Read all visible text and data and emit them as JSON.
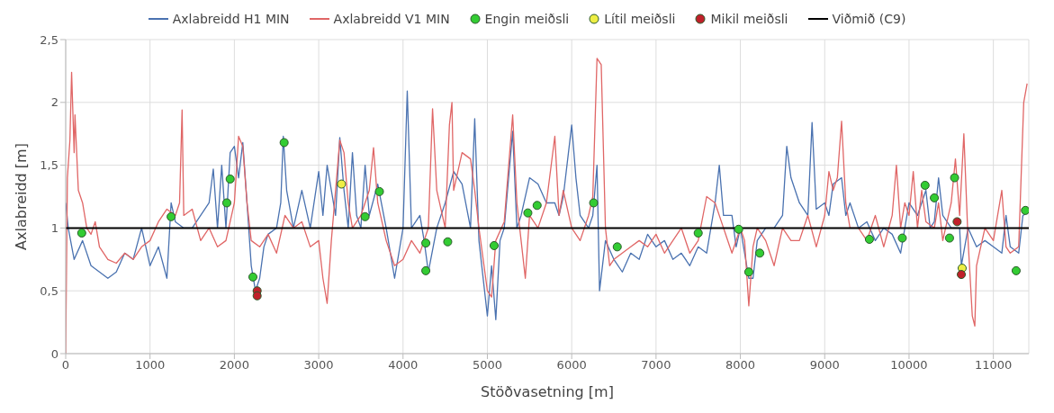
{
  "chart_data": {
    "type": "line",
    "xlabel": "Stöðvasetning [m]",
    "ylabel": "Axlabreidd [m]",
    "xlim": [
      0,
      11420
    ],
    "xticks": [
      0,
      1000,
      2000,
      3000,
      4000,
      5000,
      6000,
      7000,
      8000,
      9000,
      10000,
      11000
    ],
    "ylim": [
      0,
      2.5
    ],
    "yticks": [
      0,
      {
        "value": 0.5,
        "label": "0,5"
      },
      1,
      {
        "value": 1.5,
        "label": "1,5"
      },
      2,
      {
        "value": 2.5,
        "label": "2,5"
      }
    ],
    "grid": true,
    "legend": "top",
    "series": [
      {
        "name": "Axlabreidd H1 MIN",
        "color": "#4a72b0",
        "x": [
          0,
          30,
          100,
          200,
          300,
          400,
          500,
          600,
          700,
          800,
          900,
          1000,
          1100,
          1200,
          1250,
          1300,
          1400,
          1500,
          1600,
          1700,
          1750,
          1800,
          1850,
          1900,
          1950,
          2000,
          2050,
          2100,
          2150,
          2200,
          2250,
          2300,
          2350,
          2400,
          2500,
          2550,
          2580,
          2620,
          2700,
          2800,
          2900,
          3000,
          3050,
          3100,
          3200,
          3250,
          3300,
          3350,
          3400,
          3450,
          3500,
          3550,
          3600,
          3700,
          3800,
          3900,
          4000,
          4050,
          4100,
          4200,
          4250,
          4300,
          4400,
          4500,
          4600,
          4700,
          4800,
          4850,
          4900,
          5000,
          5050,
          5100,
          5150,
          5200,
          5300,
          5350,
          5400,
          5500,
          5600,
          5700,
          5800,
          5850,
          5900,
          6000,
          6050,
          6100,
          6200,
          6250,
          6300,
          6330,
          6400,
          6500,
          6600,
          6700,
          6800,
          6900,
          7000,
          7100,
          7200,
          7300,
          7400,
          7500,
          7600,
          7700,
          7750,
          7800,
          7900,
          7950,
          8000,
          8100,
          8150,
          8200,
          8300,
          8400,
          8500,
          8550,
          8600,
          8700,
          8800,
          8850,
          8900,
          9000,
          9050,
          9100,
          9200,
          9250,
          9300,
          9400,
          9500,
          9600,
          9700,
          9800,
          9900,
          10000,
          10100,
          10200,
          10250,
          10300,
          10350,
          10400,
          10500,
          10600,
          10620,
          10700,
          10800,
          10900,
          11000,
          11100,
          11150,
          11200,
          11300,
          11350,
          11400
        ],
        "values": [
          1.2,
          1.0,
          0.75,
          0.9,
          0.7,
          0.65,
          0.6,
          0.65,
          0.8,
          0.75,
          1.0,
          0.7,
          0.85,
          0.6,
          1.2,
          1.05,
          1.0,
          1.0,
          1.1,
          1.2,
          1.47,
          1.0,
          1.5,
          1.0,
          1.6,
          1.65,
          1.4,
          1.68,
          1.2,
          0.7,
          0.5,
          0.6,
          0.85,
          0.95,
          1.0,
          1.2,
          1.73,
          1.3,
          1.0,
          1.3,
          1.0,
          1.45,
          1.1,
          1.5,
          1.1,
          1.72,
          1.3,
          1.0,
          1.6,
          1.1,
          1.0,
          1.5,
          1.1,
          1.35,
          1.0,
          0.6,
          1.0,
          2.09,
          1.0,
          1.1,
          0.9,
          0.65,
          1.0,
          1.2,
          1.45,
          1.35,
          1.0,
          1.87,
          0.9,
          0.3,
          0.7,
          0.27,
          0.9,
          1.0,
          1.77,
          1.0,
          1.1,
          1.4,
          1.35,
          1.2,
          1.2,
          1.1,
          1.25,
          1.82,
          1.4,
          1.1,
          1.0,
          1.1,
          1.5,
          0.5,
          0.9,
          0.75,
          0.65,
          0.8,
          0.75,
          0.95,
          0.85,
          0.9,
          0.75,
          0.8,
          0.7,
          0.85,
          0.8,
          1.2,
          1.5,
          1.1,
          1.1,
          0.85,
          1.0,
          0.6,
          0.6,
          0.9,
          1.0,
          1.0,
          1.1,
          1.65,
          1.4,
          1.2,
          1.1,
          1.84,
          1.15,
          1.2,
          1.1,
          1.35,
          1.4,
          1.1,
          1.2,
          1.0,
          1.05,
          0.9,
          1.0,
          0.95,
          0.8,
          1.2,
          1.1,
          1.3,
          1.0,
          1.05,
          1.4,
          1.1,
          1.0,
          1.0,
          0.7,
          1.0,
          0.85,
          0.9,
          0.85,
          0.8,
          1.1,
          0.85,
          0.8,
          1.1,
          1.12
        ]
      },
      {
        "name": "Axlabreidd V1 MIN",
        "color": "#e06666",
        "x": [
          0,
          20,
          50,
          70,
          100,
          110,
          150,
          200,
          250,
          300,
          350,
          400,
          500,
          600,
          700,
          800,
          900,
          1000,
          1100,
          1200,
          1300,
          1350,
          1380,
          1400,
          1500,
          1600,
          1700,
          1800,
          1900,
          2000,
          2050,
          2100,
          2150,
          2200,
          2300,
          2400,
          2500,
          2600,
          2700,
          2800,
          2900,
          3000,
          3050,
          3100,
          3150,
          3200,
          3250,
          3300,
          3350,
          3400,
          3500,
          3600,
          3650,
          3700,
          3800,
          3900,
          4000,
          4100,
          4200,
          4300,
          4350,
          4400,
          4500,
          4550,
          4580,
          4600,
          4700,
          4800,
          4850,
          4900,
          5000,
          5050,
          5100,
          5200,
          5300,
          5350,
          5400,
          5450,
          5500,
          5600,
          5700,
          5800,
          5850,
          5900,
          6000,
          6100,
          6200,
          6250,
          6300,
          6350,
          6400,
          6450,
          6500,
          6600,
          6700,
          6800,
          6900,
          7000,
          7100,
          7200,
          7300,
          7400,
          7500,
          7600,
          7700,
          7800,
          7900,
          8000,
          8050,
          8100,
          8150,
          8200,
          8300,
          8400,
          8500,
          8600,
          8700,
          8800,
          8900,
          9000,
          9050,
          9100,
          9150,
          9200,
          9250,
          9300,
          9400,
          9500,
          9600,
          9700,
          9800,
          9850,
          9900,
          9950,
          10000,
          10050,
          10100,
          10150,
          10200,
          10300,
          10350,
          10400,
          10500,
          10550,
          10600,
          10650,
          10700,
          10750,
          10780,
          10800,
          10900,
          11000,
          11100,
          11150,
          11200,
          11300,
          11360,
          11400
        ],
        "values": [
          0,
          1.4,
          1.7,
          2.24,
          1.6,
          1.9,
          1.3,
          1.2,
          1.0,
          0.95,
          1.05,
          0.85,
          0.75,
          0.72,
          0.8,
          0.75,
          0.85,
          0.9,
          1.05,
          1.15,
          1.1,
          1.2,
          1.94,
          1.1,
          1.15,
          0.9,
          1.0,
          0.85,
          0.9,
          1.2,
          1.73,
          1.65,
          1.2,
          0.9,
          0.85,
          0.95,
          0.8,
          1.1,
          1.0,
          1.05,
          0.85,
          0.9,
          0.6,
          0.4,
          0.9,
          1.3,
          1.7,
          1.6,
          1.2,
          1.0,
          1.1,
          1.3,
          1.64,
          1.2,
          0.9,
          0.7,
          0.75,
          0.9,
          0.8,
          1.0,
          1.95,
          1.3,
          1.0,
          1.82,
          2.0,
          1.3,
          1.6,
          1.55,
          1.3,
          1.0,
          0.5,
          0.45,
          0.9,
          1.05,
          1.9,
          1.2,
          0.9,
          0.6,
          1.1,
          1.0,
          1.2,
          1.73,
          1.1,
          1.3,
          1.0,
          0.9,
          1.1,
          1.25,
          2.35,
          2.3,
          1.0,
          0.7,
          0.75,
          0.8,
          0.85,
          0.9,
          0.85,
          0.95,
          0.8,
          0.9,
          1.0,
          0.8,
          0.9,
          1.25,
          1.2,
          1.0,
          0.8,
          1.0,
          0.9,
          0.38,
          0.85,
          1.0,
          0.9,
          0.7,
          1.0,
          0.9,
          0.9,
          1.1,
          0.85,
          1.1,
          1.45,
          1.3,
          1.4,
          1.85,
          1.2,
          1.0,
          1.0,
          0.9,
          1.1,
          0.85,
          1.1,
          1.5,
          1.0,
          1.2,
          1.1,
          1.45,
          1.0,
          1.3,
          1.05,
          1.0,
          1.2,
          0.9,
          1.2,
          1.55,
          1.1,
          1.75,
          0.9,
          0.3,
          0.22,
          0.7,
          1.0,
          0.9,
          1.3,
          0.85,
          0.8,
          0.85,
          2.0,
          2.15
        ]
      },
      {
        "name": "Engin meiðsli",
        "type": "scatter",
        "marker": "circle",
        "color": "#33cc33",
        "x": [
          190,
          1250,
          1910,
          1950,
          2220,
          2590,
          3550,
          3720,
          4270,
          4270,
          4530,
          5080,
          5480,
          5590,
          6260,
          6540,
          7500,
          7980,
          8100,
          8230,
          9530,
          9920,
          10190,
          10300,
          10480,
          10540,
          11270,
          11380
        ],
        "values": [
          0.96,
          1.09,
          1.2,
          1.39,
          0.61,
          1.68,
          1.09,
          1.29,
          0.88,
          0.66,
          0.89,
          0.86,
          1.12,
          1.18,
          1.2,
          0.85,
          0.96,
          0.99,
          0.65,
          0.8,
          0.91,
          0.92,
          1.34,
          1.24,
          0.92,
          1.4,
          0.66,
          1.14
        ]
      },
      {
        "name": "Lítil meiðsli",
        "type": "scatter",
        "marker": "circle",
        "color": "#eeee44",
        "x": [
          3270,
          10630
        ],
        "values": [
          1.35,
          0.68
        ]
      },
      {
        "name": "Mikil meiðsli",
        "type": "scatter",
        "marker": "circle",
        "color": "#c0202a",
        "x": [
          2270,
          2270,
          10570,
          10620
        ],
        "values": [
          0.5,
          0.46,
          1.05,
          0.63
        ]
      },
      {
        "name": "Viðmið (C9)",
        "color": "#000000",
        "x": [
          0,
          11420
        ],
        "values": [
          1,
          1
        ]
      }
    ]
  }
}
